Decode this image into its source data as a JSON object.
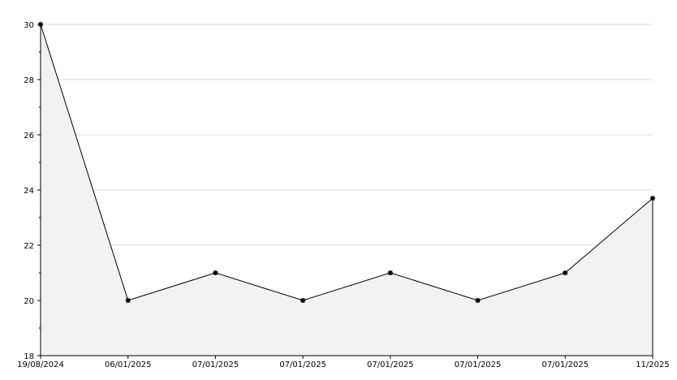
{
  "chart_data": {
    "type": "area",
    "title": "",
    "xlabel": "",
    "ylabel": "",
    "categories": [
      "19/08/2024",
      "06/01/2025",
      "07/01/2025",
      "07/01/2025",
      "07/01/2025",
      "07/01/2025",
      "07/01/2025",
      "11/2025"
    ],
    "series": [
      {
        "values": [
          30,
          20,
          21,
          20,
          21,
          20,
          21,
          23.7
        ]
      }
    ],
    "ylim": [
      18,
      30
    ],
    "y_ticks": [
      "18",
      "20",
      "22",
      "24",
      "26",
      "28",
      "30"
    ],
    "grid": "horizontal",
    "legend": "none"
  },
  "colors": {
    "line": "#000000",
    "fill": "#f2f2f2",
    "grid": "#dddddd",
    "axis": "#000000",
    "marker": "#000000"
  }
}
